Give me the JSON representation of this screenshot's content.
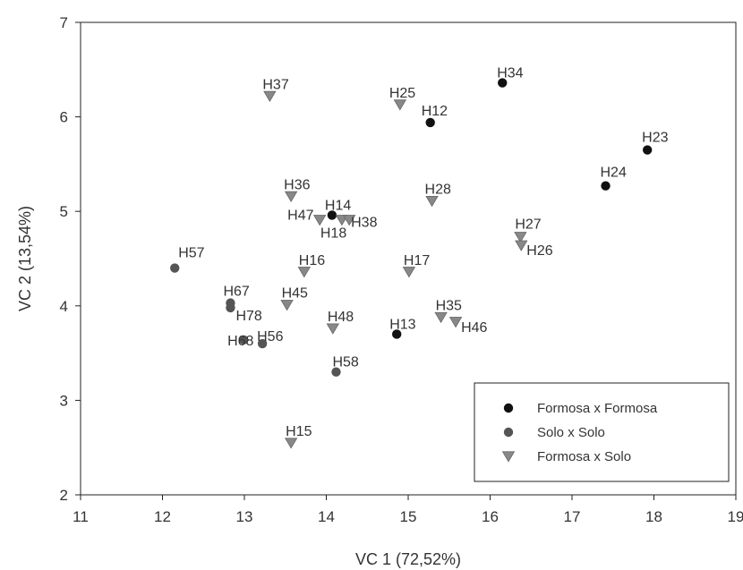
{
  "chart_data": {
    "type": "scatter",
    "title": "",
    "xlabel": "VC 1 (72,52%)",
    "ylabel": "VC 2 (13,54%)",
    "xlim": [
      11,
      19
    ],
    "ylim": [
      2,
      7
    ],
    "xticks": [
      "11",
      "12",
      "13",
      "14",
      "15",
      "16",
      "17",
      "18",
      "19"
    ],
    "yticks": [
      "2",
      "3",
      "4",
      "5",
      "6",
      "7"
    ],
    "grid": false,
    "legend_position": "bottom-right",
    "series": [
      {
        "name": "Formosa x Formosa",
        "marker": "circle",
        "color": "#111111",
        "points": [
          {
            "label": "H34",
            "x": 16.15,
            "y": 6.36
          },
          {
            "label": "H12",
            "x": 15.27,
            "y": 5.94
          },
          {
            "label": "H23",
            "x": 17.92,
            "y": 5.65
          },
          {
            "label": "H24",
            "x": 17.41,
            "y": 5.27
          },
          {
            "label": "H14",
            "x": 14.07,
            "y": 4.96
          },
          {
            "label": "H13",
            "x": 14.86,
            "y": 3.7
          }
        ]
      },
      {
        "name": "Solo x Solo",
        "marker": "circle",
        "color": "#555555",
        "points": [
          {
            "label": "H57",
            "x": 12.15,
            "y": 4.4
          },
          {
            "label": "H67",
            "x": 12.83,
            "y": 4.03
          },
          {
            "label": "H78",
            "x": 12.83,
            "y": 3.98
          },
          {
            "label": "H68",
            "x": 12.99,
            "y": 3.64
          },
          {
            "label": "H56",
            "x": 13.22,
            "y": 3.6
          },
          {
            "label": "H58",
            "x": 14.12,
            "y": 3.3
          }
        ]
      },
      {
        "name": "Formosa x Solo",
        "marker": "triangle-down",
        "color": "#888888",
        "points": [
          {
            "label": "H37",
            "x": 13.31,
            "y": 6.22
          },
          {
            "label": "H25",
            "x": 14.9,
            "y": 6.13
          },
          {
            "label": "H36",
            "x": 13.57,
            "y": 5.16
          },
          {
            "label": "H28",
            "x": 15.29,
            "y": 5.11
          },
          {
            "label": "H47",
            "x": 13.92,
            "y": 4.91
          },
          {
            "label": "H18",
            "x": 14.19,
            "y": 4.91
          },
          {
            "label": "H38",
            "x": 14.28,
            "y": 4.91
          },
          {
            "label": "H27",
            "x": 16.37,
            "y": 4.73
          },
          {
            "label": "H26",
            "x": 16.38,
            "y": 4.64
          },
          {
            "label": "H16",
            "x": 13.73,
            "y": 4.36
          },
          {
            "label": "H17",
            "x": 15.01,
            "y": 4.36
          },
          {
            "label": "H45",
            "x": 13.52,
            "y": 4.01
          },
          {
            "label": "H35",
            "x": 15.4,
            "y": 3.88
          },
          {
            "label": "H46",
            "x": 15.58,
            "y": 3.83
          },
          {
            "label": "H48",
            "x": 14.08,
            "y": 3.76
          },
          {
            "label": "H15",
            "x": 13.57,
            "y": 2.55
          }
        ]
      }
    ]
  }
}
